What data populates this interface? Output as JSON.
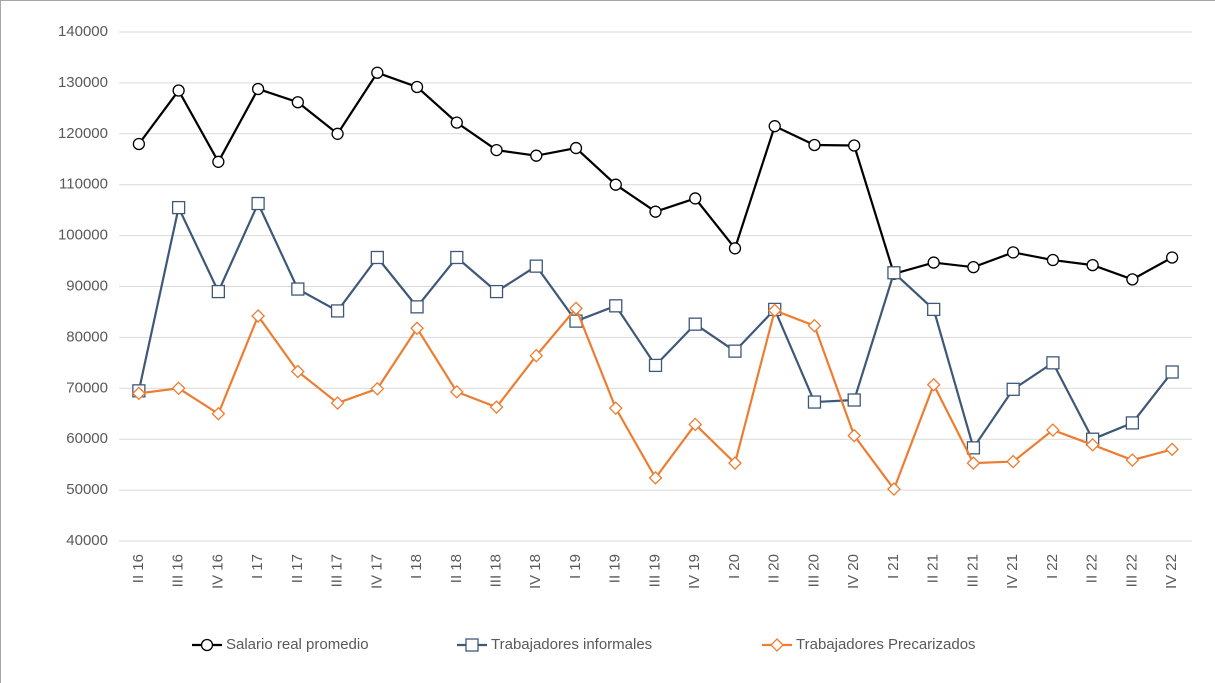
{
  "chart_data": {
    "type": "line",
    "categories": [
      "II 16",
      "III 16",
      "IV 16",
      "I 17",
      "II 17",
      "III 17",
      "IV 17",
      "I 18",
      "II 18",
      "III 18",
      "IV 18",
      "I 19",
      "II 19",
      "III 19",
      "IV 19",
      "I 20",
      "II 20",
      "III 20",
      "IV 20",
      "I 21",
      "II 21",
      "III 21",
      "IV 21",
      "I 22",
      "II 22",
      "III 22",
      "IV 22"
    ],
    "series": [
      {
        "name": "Salario real promedio",
        "color": "#000000",
        "marker": "circle",
        "values": [
          118000,
          128500,
          114500,
          128800,
          126200,
          120000,
          132000,
          129200,
          122200,
          116800,
          115700,
          117200,
          110000,
          104700,
          107300,
          97500,
          121500,
          117800,
          117700,
          92500,
          94700,
          93800,
          96700,
          95200,
          94200,
          91400,
          95700
        ]
      },
      {
        "name": "Trabajadores informales",
        "color": "#3e5878",
        "marker": "square",
        "values": [
          69500,
          105500,
          89000,
          106300,
          89500,
          85200,
          95700,
          86000,
          95700,
          89000,
          94000,
          83200,
          86200,
          74500,
          82600,
          77300,
          85500,
          67300,
          67700,
          92700,
          85500,
          58300,
          69800,
          75000,
          60000,
          63200,
          73200
        ]
      },
      {
        "name": "Trabajadores Precarizados",
        "color": "#ed7d31",
        "marker": "diamond",
        "values": [
          69000,
          70000,
          65000,
          84200,
          73300,
          67100,
          69900,
          81800,
          69300,
          66300,
          76400,
          85700,
          66100,
          52400,
          62900,
          55300,
          85300,
          82300,
          60700,
          50200,
          70700,
          55300,
          55600,
          61800,
          58900,
          55900,
          58000
        ]
      }
    ],
    "ylim": [
      40000,
      140000
    ],
    "yticks": [
      40000,
      50000,
      60000,
      70000,
      80000,
      90000,
      100000,
      110000,
      120000,
      130000,
      140000
    ],
    "grid": true,
    "legend": "bottom"
  }
}
